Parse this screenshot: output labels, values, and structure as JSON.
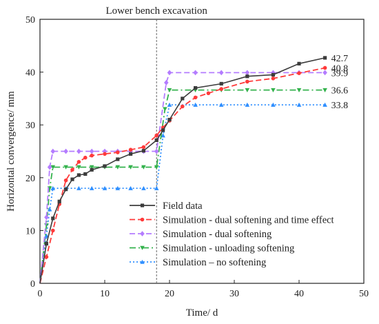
{
  "chart_data": {
    "type": "line",
    "title": "",
    "xlabel": "Time/ d",
    "ylabel": "Horizontal convergence/ mm",
    "xlim": [
      0,
      50
    ],
    "ylim": [
      0,
      50
    ],
    "xticks": [
      "0",
      "10",
      "20",
      "30",
      "40",
      "50"
    ],
    "yticks": [
      "0",
      "10",
      "20",
      "30",
      "40",
      "50"
    ],
    "grid": false,
    "legend_position": "bottom-center",
    "annotation": {
      "text": "Lower bench excavation",
      "x": 18
    },
    "series": [
      {
        "name": "Field data",
        "color": "#3c3c3c",
        "dash": "solid",
        "marker": "square",
        "end_label": "42.7",
        "x": [
          0,
          1,
          2,
          3,
          4,
          5,
          6,
          7,
          8,
          10,
          12,
          14,
          16,
          18,
          19,
          20,
          22,
          24,
          28,
          32,
          36,
          40,
          44
        ],
        "y": [
          0,
          7.5,
          12.3,
          15.5,
          17.8,
          19.7,
          20.5,
          20.7,
          21.5,
          22.2,
          23.5,
          24.5,
          25.1,
          27.1,
          29,
          31,
          35,
          37,
          37.8,
          39.2,
          39.5,
          41.6,
          42.7
        ]
      },
      {
        "name": "Simulation - dual softening and time effect",
        "color": "#ff3a3a",
        "dash": "dashed",
        "marker": "circle",
        "end_label": "40.8",
        "x": [
          0,
          1,
          2,
          3,
          4,
          5,
          6,
          7,
          8,
          10,
          12,
          14,
          16,
          18,
          19,
          20,
          22,
          24,
          26,
          28,
          32,
          36,
          40,
          44
        ],
        "y": [
          0,
          5,
          10,
          15,
          19.5,
          21.5,
          23,
          23.8,
          24.2,
          24.5,
          24.8,
          25.3,
          25.8,
          28,
          29.5,
          30.8,
          33.5,
          35.2,
          36,
          36.8,
          38.2,
          38.8,
          39.8,
          40.8
        ]
      },
      {
        "name": "Simulation - dual softening",
        "color": "#b47cff",
        "dash": "dashed",
        "marker": "diamond",
        "end_label": "39.9",
        "x": [
          0,
          1,
          1.5,
          2,
          4,
          6,
          8,
          10,
          12,
          14,
          16,
          18,
          19.5,
          20,
          24,
          28,
          32,
          36,
          40,
          44
        ],
        "y": [
          0,
          12.5,
          22,
          25,
          25,
          25,
          25,
          25,
          25,
          25,
          25,
          25,
          38,
          39.9,
          39.9,
          39.9,
          39.9,
          39.9,
          39.9,
          39.9
        ]
      },
      {
        "name": "Simulation - unloading softening",
        "color": "#33b24c",
        "dash": "dashdot",
        "marker": "triangle-down",
        "end_label": "36.6",
        "x": [
          0,
          1,
          1.5,
          2,
          4,
          6,
          8,
          10,
          12,
          14,
          16,
          18,
          19.3,
          20,
          24,
          28,
          32,
          36,
          40,
          44
        ],
        "y": [
          0,
          11,
          18,
          22,
          22,
          22,
          22,
          22,
          22,
          22,
          22,
          22,
          33,
          36.6,
          36.6,
          36.6,
          36.6,
          36.6,
          36.6,
          36.6
        ]
      },
      {
        "name": "Simulation – no softening",
        "color": "#2f8fff",
        "dash": "dotted",
        "marker": "triangle-up",
        "end_label": "33.8",
        "x": [
          0,
          1,
          1.5,
          2,
          4,
          6,
          8,
          10,
          12,
          14,
          16,
          18,
          19,
          20,
          24,
          28,
          32,
          36,
          40,
          44
        ],
        "y": [
          0,
          9,
          14,
          18,
          18,
          18,
          18,
          18,
          18,
          18,
          18,
          18,
          28,
          33.8,
          33.8,
          33.8,
          33.8,
          33.8,
          33.8,
          33.8
        ]
      }
    ]
  }
}
